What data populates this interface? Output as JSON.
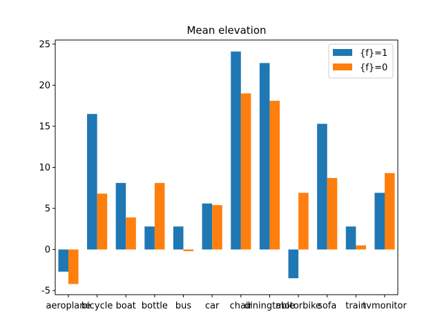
{
  "chart_data": {
    "type": "bar",
    "title": "Mean elevation",
    "xlabel": "",
    "ylabel": "",
    "categories": [
      "aeroplane",
      "bicycle",
      "boat",
      "bottle",
      "bus",
      "car",
      "chair",
      "diningtable",
      "motorbike",
      "sofa",
      "train",
      "tvmonitor"
    ],
    "series": [
      {
        "name": "{f}=1",
        "color": "#1f77b4",
        "values": [
          -2.7,
          16.5,
          8.1,
          2.8,
          2.8,
          5.6,
          24.1,
          22.7,
          -3.5,
          15.3,
          2.8,
          6.9
        ]
      },
      {
        "name": "{f}=0",
        "color": "#ff7f0e",
        "values": [
          -4.2,
          6.8,
          3.9,
          8.1,
          -0.2,
          5.4,
          19.0,
          18.1,
          6.9,
          8.7,
          0.5,
          9.3
        ]
      }
    ],
    "ylim": [
      -5.5,
      25.5
    ],
    "yticks": [
      -5,
      0,
      5,
      10,
      15,
      20,
      25
    ],
    "legend_position": "top-right",
    "grid": false
  }
}
